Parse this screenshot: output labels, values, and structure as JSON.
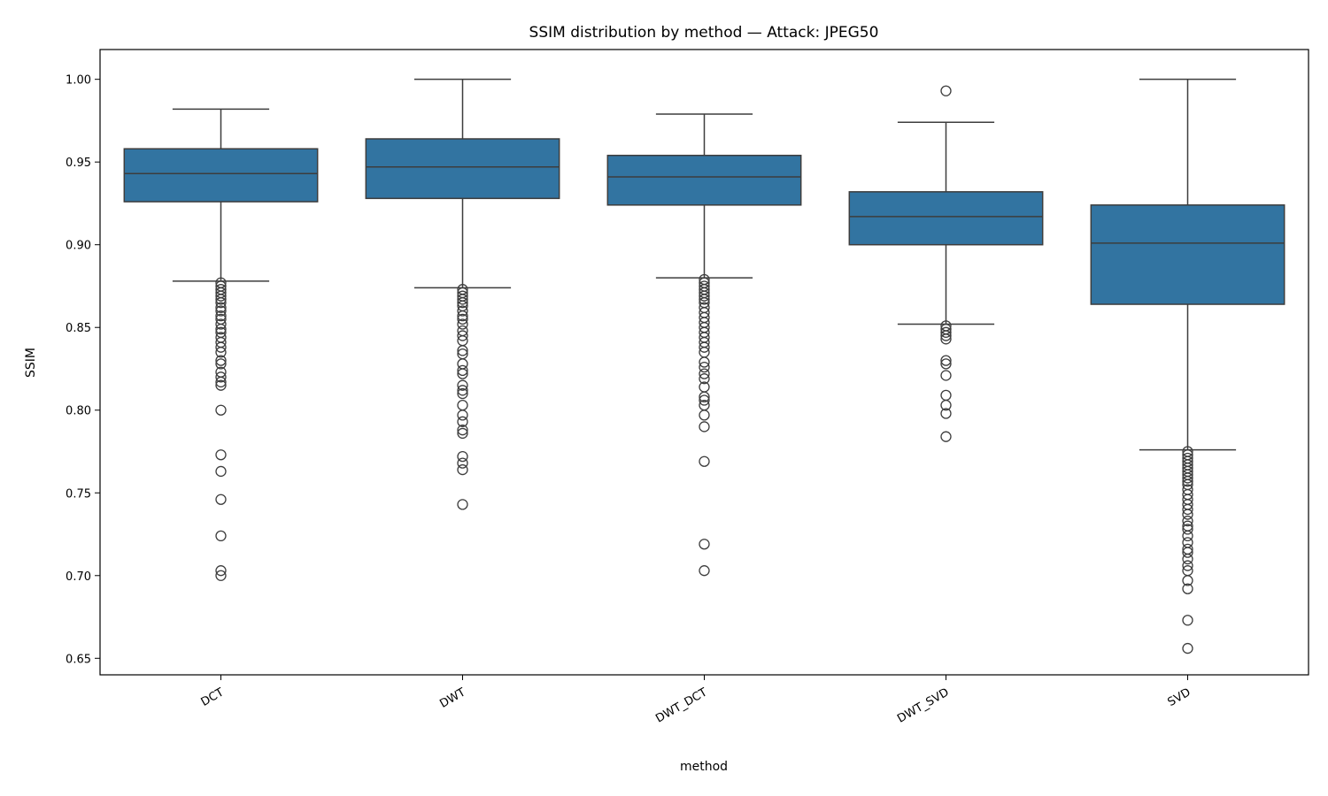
{
  "chart_data": {
    "type": "box",
    "title": "SSIM distribution by method — Attack: JPEG50",
    "xlabel": "method",
    "ylabel": "SSIM",
    "ylim": [
      0.64,
      1.018
    ],
    "yticks": [
      0.65,
      0.7,
      0.75,
      0.8,
      0.85,
      0.9,
      0.95,
      1.0
    ],
    "ytick_labels": [
      "0.65",
      "0.70",
      "0.75",
      "0.80",
      "0.85",
      "0.90",
      "0.95",
      "1.00"
    ],
    "categories": [
      "DCT",
      "DWT",
      "DWT_DCT",
      "DWT_SVD",
      "SVD"
    ],
    "box_color": "#3274a1",
    "edge_color": "#3d3d3d",
    "grid": false,
    "boxes": [
      {
        "method": "DCT",
        "whisker_low": 0.878,
        "q1": 0.926,
        "median": 0.943,
        "q3": 0.958,
        "whisker_high": 0.982,
        "outliers": [
          0.877,
          0.875,
          0.873,
          0.871,
          0.869,
          0.867,
          0.865,
          0.862,
          0.86,
          0.857,
          0.855,
          0.852,
          0.849,
          0.847,
          0.844,
          0.841,
          0.838,
          0.835,
          0.83,
          0.828,
          0.823,
          0.82,
          0.817,
          0.815,
          0.8,
          0.773,
          0.763,
          0.746,
          0.724,
          0.703,
          0.7
        ]
      },
      {
        "method": "DWT",
        "whisker_low": 0.874,
        "q1": 0.928,
        "median": 0.947,
        "q3": 0.964,
        "whisker_high": 1.0,
        "outliers": [
          0.873,
          0.871,
          0.869,
          0.867,
          0.865,
          0.863,
          0.86,
          0.857,
          0.855,
          0.852,
          0.848,
          0.845,
          0.842,
          0.836,
          0.834,
          0.828,
          0.824,
          0.822,
          0.815,
          0.812,
          0.81,
          0.803,
          0.797,
          0.793,
          0.788,
          0.786,
          0.772,
          0.768,
          0.764,
          0.743
        ]
      },
      {
        "method": "DWT_DCT",
        "whisker_low": 0.88,
        "q1": 0.924,
        "median": 0.941,
        "q3": 0.954,
        "whisker_high": 0.979,
        "outliers": [
          0.879,
          0.877,
          0.875,
          0.873,
          0.871,
          0.869,
          0.867,
          0.865,
          0.862,
          0.859,
          0.856,
          0.853,
          0.85,
          0.847,
          0.844,
          0.841,
          0.838,
          0.835,
          0.829,
          0.826,
          0.822,
          0.819,
          0.814,
          0.808,
          0.806,
          0.803,
          0.797,
          0.79,
          0.769,
          0.719,
          0.703
        ]
      },
      {
        "method": "DWT_SVD",
        "whisker_low": 0.852,
        "q1": 0.9,
        "median": 0.917,
        "q3": 0.932,
        "whisker_high": 0.974,
        "outliers": [
          0.993,
          0.851,
          0.849,
          0.847,
          0.845,
          0.843,
          0.83,
          0.828,
          0.821,
          0.809,
          0.803,
          0.798,
          0.784
        ]
      },
      {
        "method": "SVD",
        "whisker_low": 0.776,
        "q1": 0.864,
        "median": 0.901,
        "q3": 0.924,
        "whisker_high": 1.0,
        "outliers": [
          0.775,
          0.773,
          0.771,
          0.769,
          0.767,
          0.765,
          0.763,
          0.761,
          0.759,
          0.757,
          0.755,
          0.752,
          0.749,
          0.746,
          0.743,
          0.74,
          0.737,
          0.733,
          0.73,
          0.728,
          0.724,
          0.72,
          0.716,
          0.714,
          0.71,
          0.706,
          0.703,
          0.697,
          0.692,
          0.673,
          0.656
        ]
      }
    ]
  }
}
